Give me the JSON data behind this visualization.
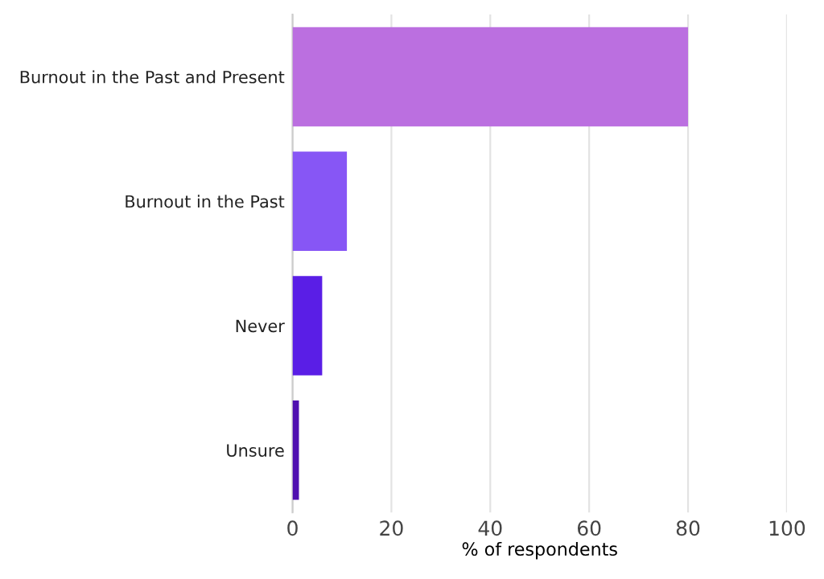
{
  "chart_data": {
    "type": "bar",
    "orientation": "horizontal",
    "categories": [
      "Burnout in the Past and Present",
      "Burnout in the Past",
      "Never",
      "Unsure"
    ],
    "values": [
      80,
      11,
      6,
      1.3
    ],
    "colors": [
      "#bb6fe0",
      "#8756f5",
      "#5a1ee6",
      "#4f10b0"
    ],
    "xlabel": "% of respondents",
    "xlim": [
      0,
      100
    ],
    "xticks": [
      0,
      20,
      40,
      60,
      80,
      100
    ],
    "grid": "x",
    "legend": false
  }
}
